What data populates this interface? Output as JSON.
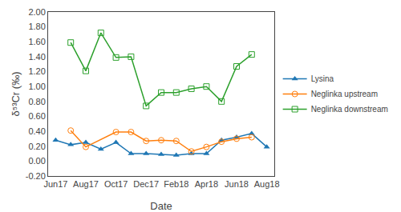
{
  "chart_data": {
    "type": "line",
    "xlabel": "Date",
    "ylabel": "δ⁵³Cr (‰)",
    "series": [
      {
        "name": "Lysina",
        "marker": "triangle-up",
        "x": [
          0,
          1,
          2,
          3,
          4,
          5,
          6,
          7,
          8,
          9,
          10,
          11,
          12,
          13,
          14
        ],
        "values": [
          0.28,
          0.22,
          0.25,
          0.16,
          0.25,
          0.1,
          0.1,
          0.09,
          0.08,
          0.1,
          0.1,
          0.28,
          0.32,
          0.37,
          0.19
        ]
      },
      {
        "name": "Neglinka upstream",
        "marker": "circle-open",
        "x": [
          1,
          2,
          4,
          5,
          6,
          7,
          8,
          9,
          10,
          11,
          12,
          13
        ],
        "values": [
          0.41,
          0.19,
          0.39,
          0.39,
          0.27,
          0.28,
          0.27,
          0.13,
          0.19,
          0.26,
          0.3,
          0.32
        ]
      },
      {
        "name": "Neglinka downstream",
        "marker": "square-open",
        "x": [
          1,
          2,
          3,
          4,
          5,
          6,
          7,
          8,
          9,
          10,
          11,
          12,
          13
        ],
        "values": [
          1.59,
          1.21,
          1.72,
          1.39,
          1.4,
          0.74,
          0.92,
          0.92,
          0.97,
          1.0,
          0.8,
          1.27,
          1.43
        ]
      }
    ],
    "xlim": [
      -0.5,
      14.5
    ],
    "xticks": [
      {
        "value": 0,
        "label": "Jun17"
      },
      {
        "value": 2,
        "label": "Aug17"
      },
      {
        "value": 4,
        "label": "Oct17"
      },
      {
        "value": 6,
        "label": "Dec17"
      },
      {
        "value": 8,
        "label": "Feb18"
      },
      {
        "value": 10,
        "label": "Apr18"
      },
      {
        "value": 12,
        "label": "Jun18"
      },
      {
        "value": 14,
        "label": "Aug18"
      }
    ],
    "ylim": [
      -0.2,
      2.0
    ],
    "yticks": [
      {
        "value": -0.2,
        "label": "-0.20"
      },
      {
        "value": 0,
        "label": "0.00"
      },
      {
        "value": 0.2,
        "label": "0.20"
      },
      {
        "value": 0.4,
        "label": "0.40"
      },
      {
        "value": 0.6,
        "label": "0.60"
      },
      {
        "value": 0.8,
        "label": "0.80"
      },
      {
        "value": 1.0,
        "label": "1.00"
      },
      {
        "value": 1.2,
        "label": "1.20"
      },
      {
        "value": 1.4,
        "label": "1.40"
      },
      {
        "value": 1.6,
        "label": "1.60"
      },
      {
        "value": 1.8,
        "label": "1.80"
      },
      {
        "value": 2.0,
        "label": "2.00"
      }
    ],
    "grid": false,
    "legend": "right"
  }
}
